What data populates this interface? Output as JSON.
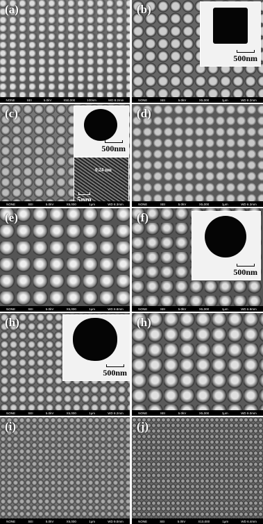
{
  "panels": [
    {
      "label": "(a)",
      "info": [
        "NONE",
        "SEI",
        "5.0kV",
        "X50,000",
        "100nm",
        "WD 8.2mm"
      ],
      "insets": []
    },
    {
      "label": "(b)",
      "info": [
        "NONE",
        "SEI",
        "5.0kV",
        "X5,000",
        "1μm",
        "WD 8.2mm"
      ],
      "insets": [
        {
          "scale": "500nm"
        }
      ]
    },
    {
      "label": "(c)",
      "info": [
        "NONE",
        "SEI",
        "5.0kV",
        "X5,000",
        "1μm",
        "WD 8.3mm"
      ],
      "insets": [
        {
          "scale": "500nm"
        },
        {
          "scale": "5nm",
          "note": "0.24 nm"
        }
      ]
    },
    {
      "label": "(d)",
      "info": [
        "NONE",
        "SEI",
        "5.0kV",
        "X5,000",
        "1μm",
        "WD 6.3mm"
      ],
      "insets": []
    },
    {
      "label": "(e)",
      "info": [
        "NONE",
        "SEI",
        "5.0kV",
        "X5,000",
        "1μm",
        "WD 8.8mm"
      ],
      "insets": []
    },
    {
      "label": "(f)",
      "info": [
        "NONE",
        "SEI",
        "5.0kV",
        "X5,000",
        "1μm",
        "WD 6.9mm"
      ],
      "insets": [
        {
          "scale": "500nm"
        }
      ]
    },
    {
      "label": "(h)",
      "info": [
        "NONE",
        "SEI",
        "5.0kV",
        "X5,000",
        "1μm",
        "WD 8.2mm"
      ],
      "insets": [
        {
          "scale": "500nm"
        }
      ]
    },
    {
      "label": "(h)",
      "info": [
        "NONE",
        "SEI",
        "5.0kV",
        "X5,000",
        "1μm",
        "WD 9.0mm"
      ],
      "insets": []
    },
    {
      "label": "(i)",
      "info": [
        "NONE",
        "SEI",
        "5.0kV",
        "X5,000",
        "1μm",
        "WD 9.0mm"
      ],
      "insets": []
    },
    {
      "label": "(j)",
      "info": [
        "NONE",
        "SEI",
        "5.0kV",
        "X10,000",
        "1μm",
        "WD 6.4mm"
      ],
      "insets": []
    }
  ]
}
